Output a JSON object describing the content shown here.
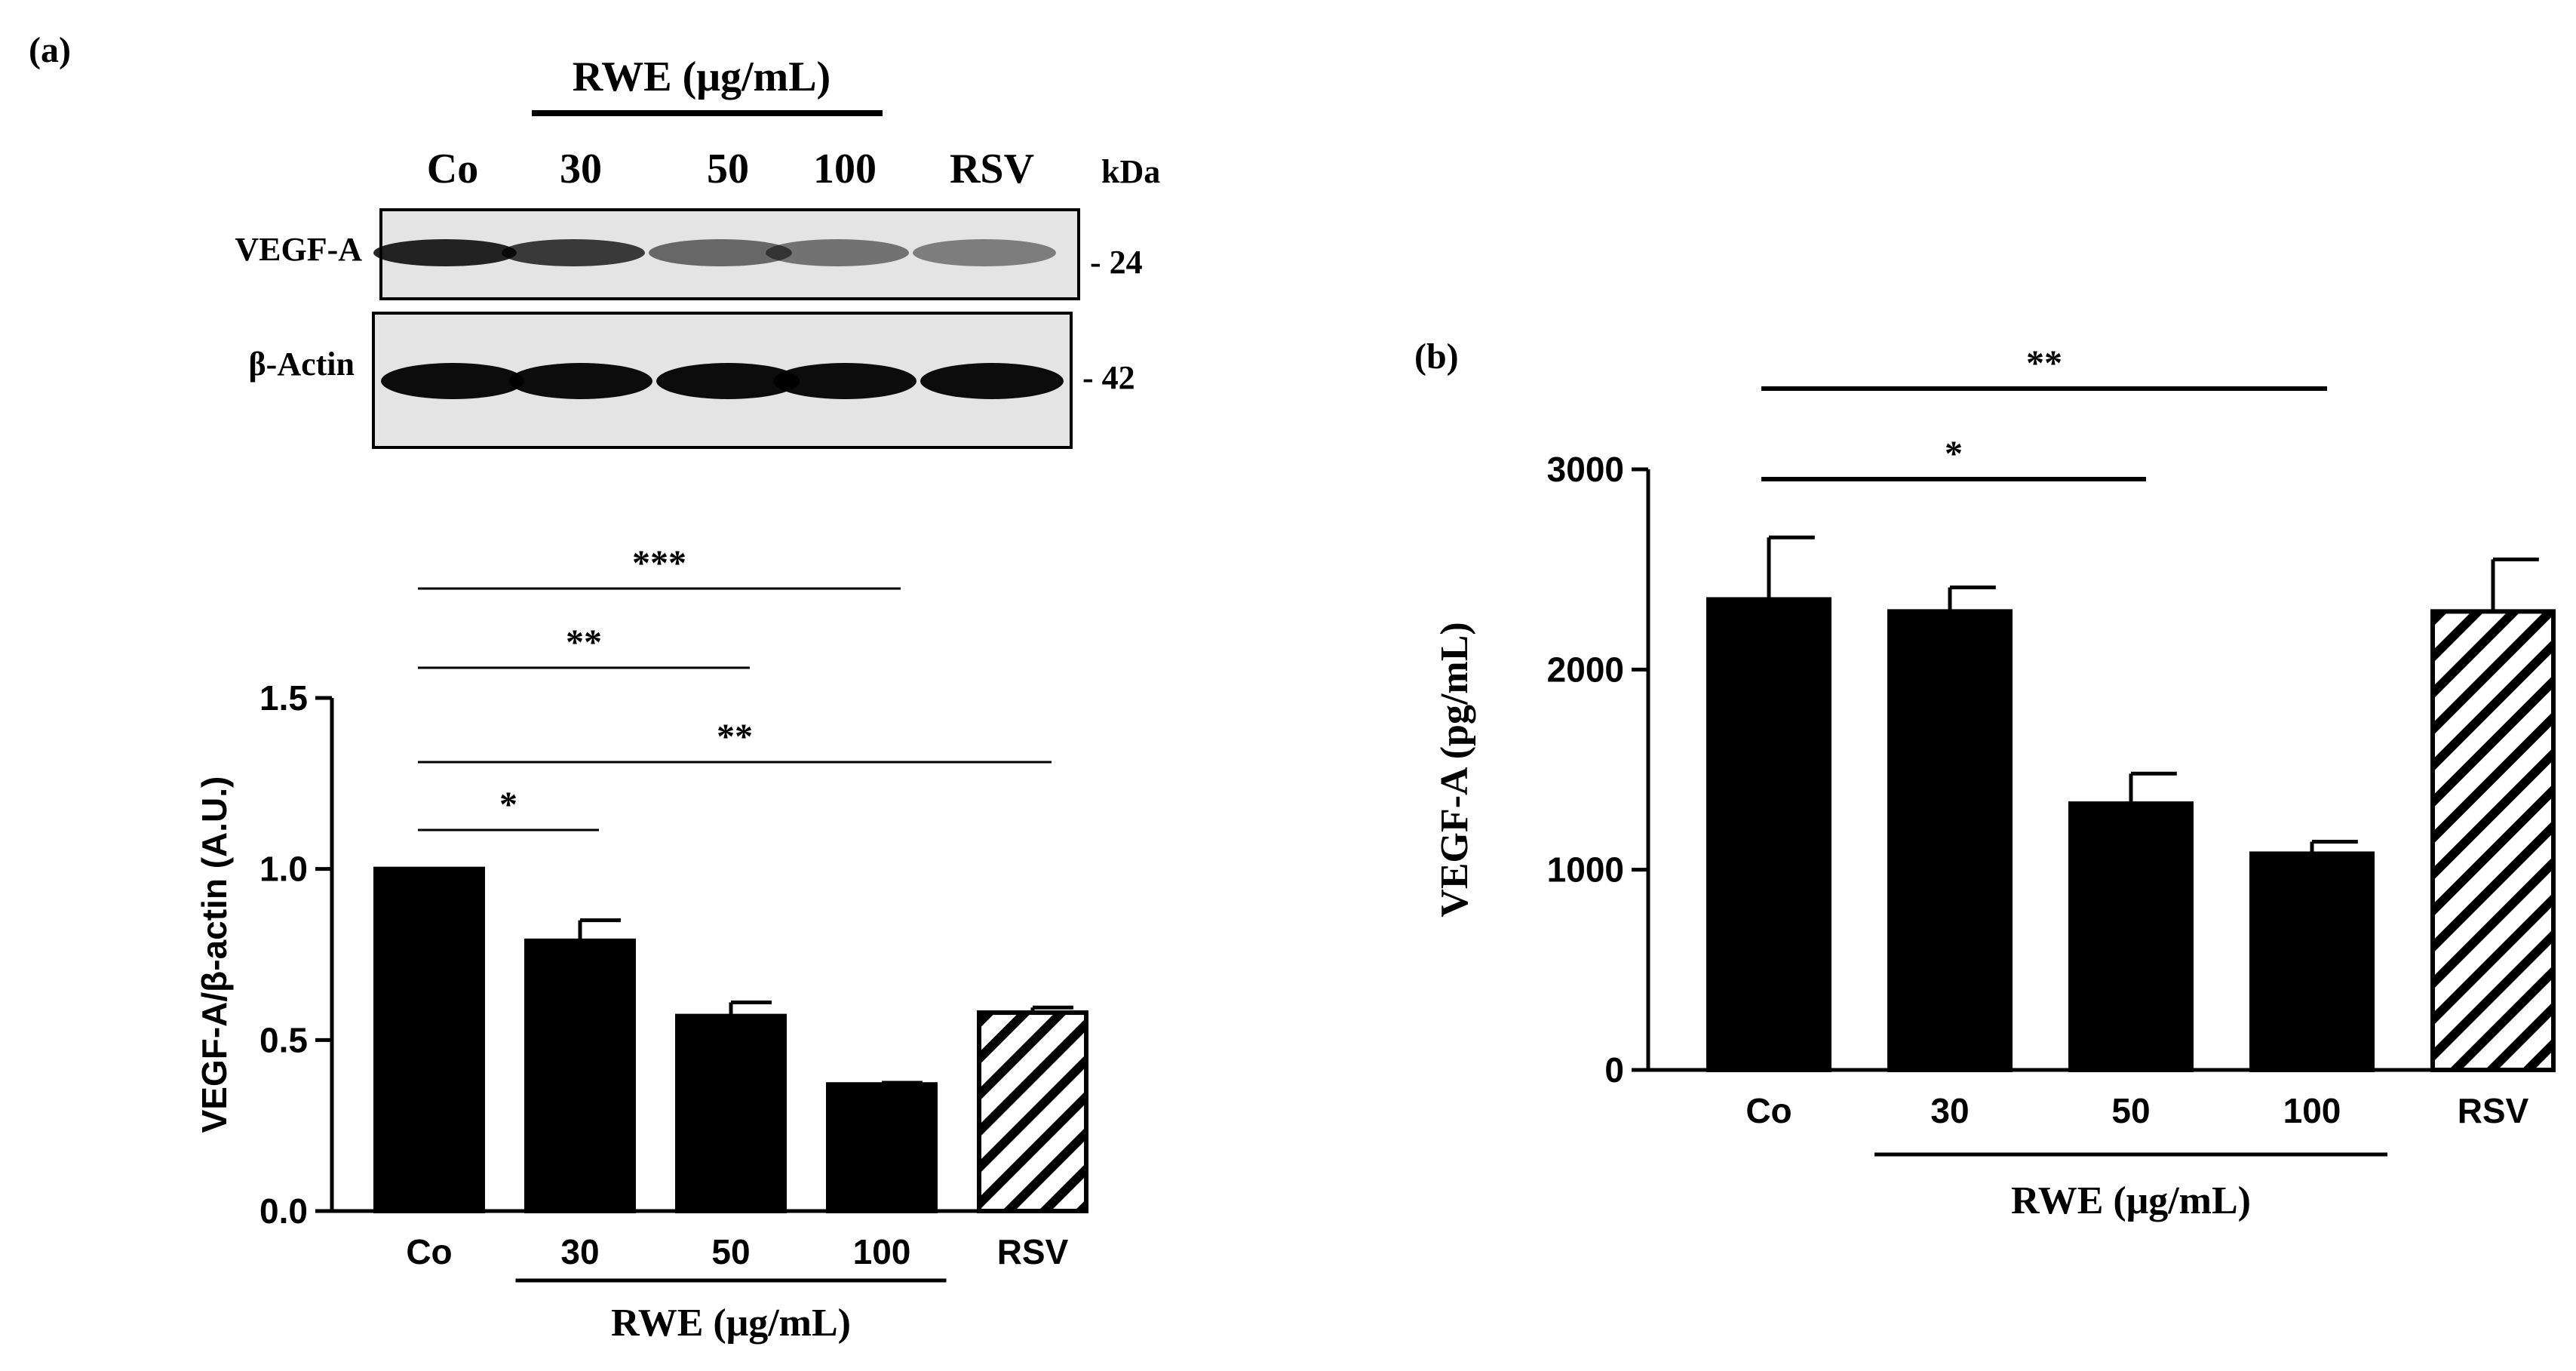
{
  "panels": {
    "a_label": "(a)",
    "b_label": "(b)"
  },
  "blot": {
    "group_label": "RWE (μg/mL)",
    "lanes": [
      "Co",
      "30",
      "50",
      "100",
      "RSV"
    ],
    "kda_label": "kDa",
    "rows": [
      {
        "name": "VEGF-A",
        "marker": "- 24",
        "band_intensity": [
          0.85,
          0.75,
          0.55,
          0.5,
          0.45
        ]
      },
      {
        "name": "β-Actin",
        "marker": "- 42",
        "band_intensity": [
          0.95,
          0.95,
          0.95,
          0.95,
          0.95
        ]
      }
    ]
  },
  "chart_data": [
    {
      "panel": "(a)",
      "type": "bar",
      "categories": [
        "Co",
        "30",
        "50",
        "100",
        "RSV"
      ],
      "values": [
        1.0,
        0.79,
        0.57,
        0.37,
        0.58
      ],
      "errors": [
        0.0,
        0.06,
        0.04,
        0.005,
        0.015
      ],
      "hatched": [
        false,
        false,
        false,
        false,
        true
      ],
      "ylabel": "VEGF-A/β-actin (A.U.)",
      "xlabel": "RWE (μg/mL)",
      "xgroup": {
        "from": 1,
        "to": 3
      },
      "ylim": [
        0,
        1.5
      ],
      "yticks": [
        0.0,
        0.5,
        1.0,
        1.5
      ],
      "ytick_labels": [
        "0.0",
        "0.5",
        "1.0",
        "1.5"
      ],
      "significance": [
        {
          "from": 0,
          "to": 3,
          "label": "***"
        },
        {
          "from": 0,
          "to": 2,
          "label": "**"
        },
        {
          "from": 0,
          "to": 4,
          "label": "**"
        },
        {
          "from": 0,
          "to": 1,
          "label": "*"
        }
      ]
    },
    {
      "panel": "(b)",
      "type": "bar",
      "categories": [
        "Co",
        "30",
        "50",
        "100",
        "RSV"
      ],
      "values": [
        2350,
        2290,
        1330,
        1080,
        2290
      ],
      "errors": [
        310,
        120,
        150,
        60,
        260
      ],
      "hatched": [
        false,
        false,
        false,
        false,
        true
      ],
      "ylabel": "VEGF-A (pg/mL)",
      "xlabel": "RWE (μg/mL)",
      "xgroup": {
        "from": 1,
        "to": 3
      },
      "ylim": [
        0,
        3000
      ],
      "yticks": [
        0,
        1000,
        2000,
        3000
      ],
      "ytick_labels": [
        "0",
        "1000",
        "2000",
        "3000"
      ],
      "significance": [
        {
          "from": 0,
          "to": 3,
          "label": "**"
        },
        {
          "from": 0,
          "to": 2,
          "label": "*"
        }
      ]
    }
  ]
}
